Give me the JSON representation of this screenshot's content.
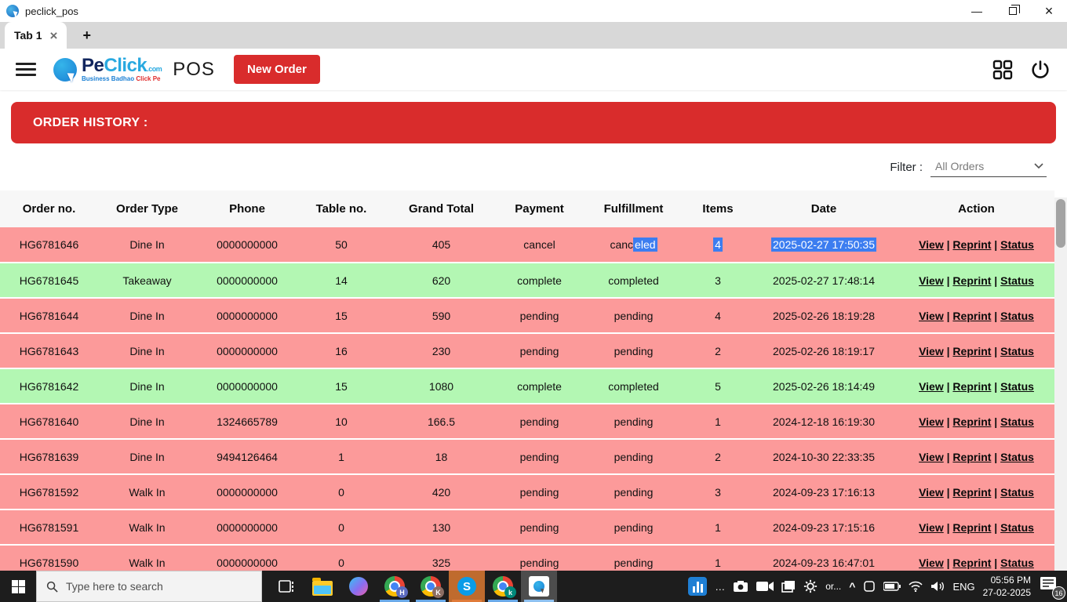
{
  "window": {
    "title": "peclick_pos"
  },
  "tabs": {
    "active_label": "Tab 1",
    "close_glyph": "×",
    "new_tab_label": "+"
  },
  "header": {
    "brand": {
      "pe": "Pe",
      "click": "Click",
      "com": ".com",
      "tagline_blue": "Business Badhao",
      "tagline_red": "Click Pe",
      "pos": "POS"
    },
    "new_order_label": "New Order"
  },
  "banner": {
    "title": "ORDER HISTORY :"
  },
  "filter": {
    "label": "Filter :",
    "value": "All Orders"
  },
  "table": {
    "columns": [
      "Order no.",
      "Order Type",
      "Phone",
      "Table no.",
      "Grand Total",
      "Payment",
      "Fulfillment",
      "Items",
      "Date",
      "Action"
    ],
    "row_fields": [
      "order_no",
      "order_type",
      "phone",
      "table_no",
      "grand_total",
      "payment",
      "fulfillment",
      "items",
      "date"
    ],
    "action_links": [
      "View",
      "Reprint",
      "Status"
    ],
    "action_separator": " | ",
    "rows": [
      {
        "order_no": "HG6781646",
        "order_type": "Dine In",
        "phone": "0000000000",
        "table_no": "50",
        "grand_total": "405",
        "payment": "cancel",
        "fulfillment": "canceled",
        "items": "4",
        "date": "2025-02-27 17:50:35",
        "tone": "red",
        "selection": {
          "fulfillment_prefix": "canc",
          "fulfillment_selected": "eled",
          "items_selected": true,
          "date_selected": true
        }
      },
      {
        "order_no": "HG6781645",
        "order_type": "Takeaway",
        "phone": "0000000000",
        "table_no": "14",
        "grand_total": "620",
        "payment": "complete",
        "fulfillment": "completed",
        "items": "3",
        "date": "2025-02-27 17:48:14",
        "tone": "green"
      },
      {
        "order_no": "HG6781644",
        "order_type": "Dine In",
        "phone": "0000000000",
        "table_no": "15",
        "grand_total": "590",
        "payment": "pending",
        "fulfillment": "pending",
        "items": "4",
        "date": "2025-02-26 18:19:28",
        "tone": "red"
      },
      {
        "order_no": "HG6781643",
        "order_type": "Dine In",
        "phone": "0000000000",
        "table_no": "16",
        "grand_total": "230",
        "payment": "pending",
        "fulfillment": "pending",
        "items": "2",
        "date": "2025-02-26 18:19:17",
        "tone": "red"
      },
      {
        "order_no": "HG6781642",
        "order_type": "Dine In",
        "phone": "0000000000",
        "table_no": "15",
        "grand_total": "1080",
        "payment": "complete",
        "fulfillment": "completed",
        "items": "5",
        "date": "2025-02-26 18:14:49",
        "tone": "green"
      },
      {
        "order_no": "HG6781640",
        "order_type": "Dine In",
        "phone": "1324665789",
        "table_no": "10",
        "grand_total": "166.5",
        "payment": "pending",
        "fulfillment": "pending",
        "items": "1",
        "date": "2024-12-18 16:19:30",
        "tone": "red"
      },
      {
        "order_no": "HG6781639",
        "order_type": "Dine In",
        "phone": "9494126464",
        "table_no": "1",
        "grand_total": "18",
        "payment": "pending",
        "fulfillment": "pending",
        "items": "2",
        "date": "2024-10-30 22:33:35",
        "tone": "red"
      },
      {
        "order_no": "HG6781592",
        "order_type": "Walk In",
        "phone": "0000000000",
        "table_no": "0",
        "grand_total": "420",
        "payment": "pending",
        "fulfillment": "pending",
        "items": "3",
        "date": "2024-09-23 17:16:13",
        "tone": "red"
      },
      {
        "order_no": "HG6781591",
        "order_type": "Walk In",
        "phone": "0000000000",
        "table_no": "0",
        "grand_total": "130",
        "payment": "pending",
        "fulfillment": "pending",
        "items": "1",
        "date": "2024-09-23 17:15:16",
        "tone": "red"
      },
      {
        "order_no": "HG6781590",
        "order_type": "Walk In",
        "phone": "0000000000",
        "table_no": "0",
        "grand_total": "325",
        "payment": "pending",
        "fulfillment": "pending",
        "items": "1",
        "date": "2024-09-23 16:47:01",
        "tone": "red"
      }
    ]
  },
  "taskbar": {
    "search_placeholder": "Type here to search",
    "chrome_badge_1": "H",
    "chrome_badge_2": "K",
    "skype_glyph": "S",
    "chrome_badge_3": "k",
    "overflow_text": "or...",
    "language": "ENG",
    "time": "05:56 PM",
    "date": "27-02-2025",
    "notification_count": "16"
  },
  "colors": {
    "accent_red": "#d92c2c",
    "row_red": "#fc9a9a",
    "row_green": "#b3f7b3",
    "selection_blue": "#3c7df0"
  }
}
